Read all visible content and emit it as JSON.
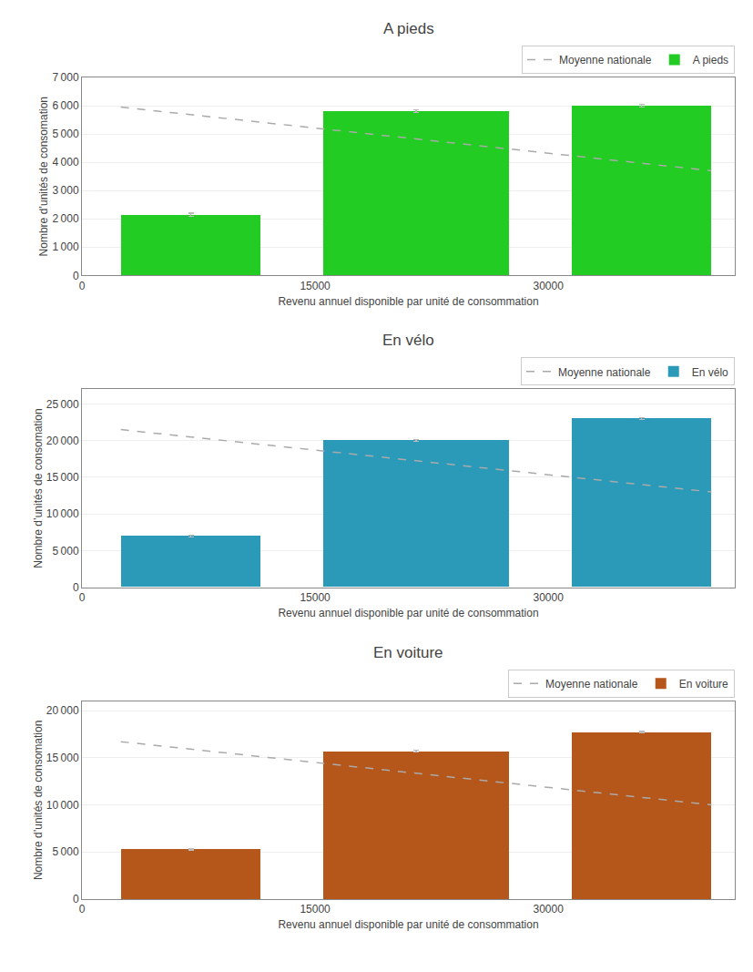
{
  "chart_data": [
    {
      "type": "bar",
      "title": "A pieds",
      "xlabel": "Revenu annuel disponible par unité de consommation",
      "ylabel": "Nombre d’unités de consomation",
      "xlim": [
        0,
        42000
      ],
      "xticks": [
        0,
        15000,
        30000
      ],
      "ylim": [
        0,
        7000
      ],
      "yticks": [
        0,
        {
          "value": 1000,
          "label": "1 000"
        },
        {
          "value": 2000,
          "label": "2 000"
        },
        {
          "value": 3000,
          "label": "3 000"
        },
        {
          "value": 4000,
          "label": "4 000"
        },
        {
          "value": 5000,
          "label": "5 000"
        },
        {
          "value": 6000,
          "label": "6 000"
        },
        {
          "value": 7000,
          "label": "7 000"
        }
      ],
      "grid": true,
      "legend": "upper right",
      "series": [
        {
          "name": "Moyenne nationale",
          "type": "line",
          "color": "#aaaaaa",
          "line_style": "dashed",
          "x": [
            2500,
            40500
          ],
          "values": [
            5950,
            3700
          ]
        },
        {
          "name": "A pieds",
          "type": "bar",
          "color": "#22cc22",
          "x": [
            7000,
            21500,
            36000
          ],
          "widths": [
            9000,
            12000,
            9000
          ],
          "values": [
            2150,
            5800,
            6000
          ],
          "errors": [
            50,
            50,
            50
          ]
        }
      ]
    },
    {
      "type": "bar",
      "title": "En vélo",
      "xlabel": "Revenu annuel disponible par unité de consommation",
      "ylabel": "Nombre d’unités de consomation",
      "xlim": [
        0,
        42000
      ],
      "xticks": [
        0,
        15000,
        30000
      ],
      "ylim": [
        0,
        27000
      ],
      "yticks": [
        0,
        {
          "value": 5000,
          "label": "5 000"
        },
        {
          "value": 10000,
          "label": "10 000"
        },
        {
          "value": 15000,
          "label": "15 000"
        },
        {
          "value": 20000,
          "label": "20 000"
        },
        {
          "value": 25000,
          "label": "25 000"
        }
      ],
      "grid": true,
      "legend": "upper right",
      "series": [
        {
          "name": "Moyenne nationale",
          "type": "line",
          "color": "#aaaaaa",
          "line_style": "dashed",
          "x": [
            2500,
            40500
          ],
          "values": [
            21500,
            13000
          ]
        },
        {
          "name": "En vélo",
          "type": "bar",
          "color": "#2b9ab8",
          "x": [
            7000,
            21500,
            36000
          ],
          "widths": [
            9000,
            12000,
            9000
          ],
          "values": [
            7000,
            20000,
            23000
          ],
          "errors": [
            100,
            100,
            100
          ]
        }
      ]
    },
    {
      "type": "bar",
      "title": "En voiture",
      "xlabel": "Revenu annuel disponible par unité de consommation",
      "ylabel": "Nombre d’unités de consomation",
      "xlim": [
        0,
        42000
      ],
      "xticks": [
        0,
        15000,
        30000
      ],
      "ylim": [
        0,
        21000
      ],
      "yticks": [
        0,
        {
          "value": 5000,
          "label": "5 000"
        },
        {
          "value": 10000,
          "label": "10 000"
        },
        {
          "value": 15000,
          "label": "15 000"
        },
        {
          "value": 20000,
          "label": "20 000"
        }
      ],
      "grid": true,
      "legend": "upper right",
      "series": [
        {
          "name": "Moyenne nationale",
          "type": "line",
          "color": "#aaaaaa",
          "line_style": "dashed",
          "x": [
            2500,
            40500
          ],
          "values": [
            16700,
            10000
          ]
        },
        {
          "name": "En voiture",
          "type": "bar",
          "color": "#b5571b",
          "x": [
            7000,
            21500,
            36000
          ],
          "widths": [
            9000,
            12000,
            9000
          ],
          "values": [
            5300,
            15700,
            17700
          ],
          "errors": [
            80,
            80,
            80
          ]
        }
      ]
    }
  ]
}
